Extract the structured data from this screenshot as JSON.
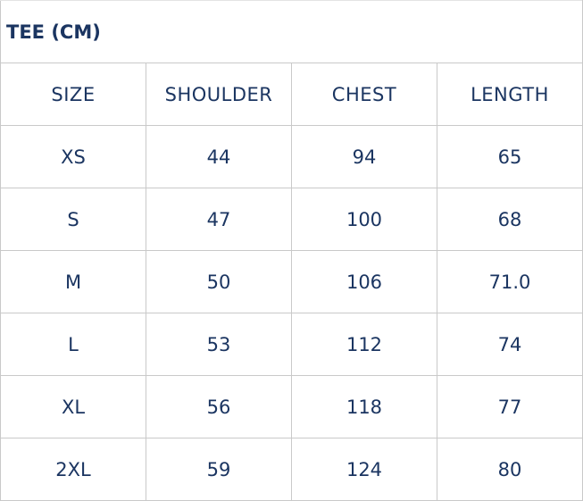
{
  "title": "TEE (CM)",
  "headers": [
    "SIZE",
    "SHOULDER",
    "CHEST",
    "LENGTH"
  ],
  "rows": [
    [
      "XS",
      "44",
      "94",
      "65"
    ],
    [
      "S",
      "47",
      "100",
      "68"
    ],
    [
      "M",
      "50",
      "106",
      "71.0"
    ],
    [
      "L",
      "53",
      "112",
      "74"
    ],
    [
      "XL",
      "56",
      "118",
      "77"
    ],
    [
      "2XL",
      "59",
      "124",
      "80"
    ]
  ]
}
